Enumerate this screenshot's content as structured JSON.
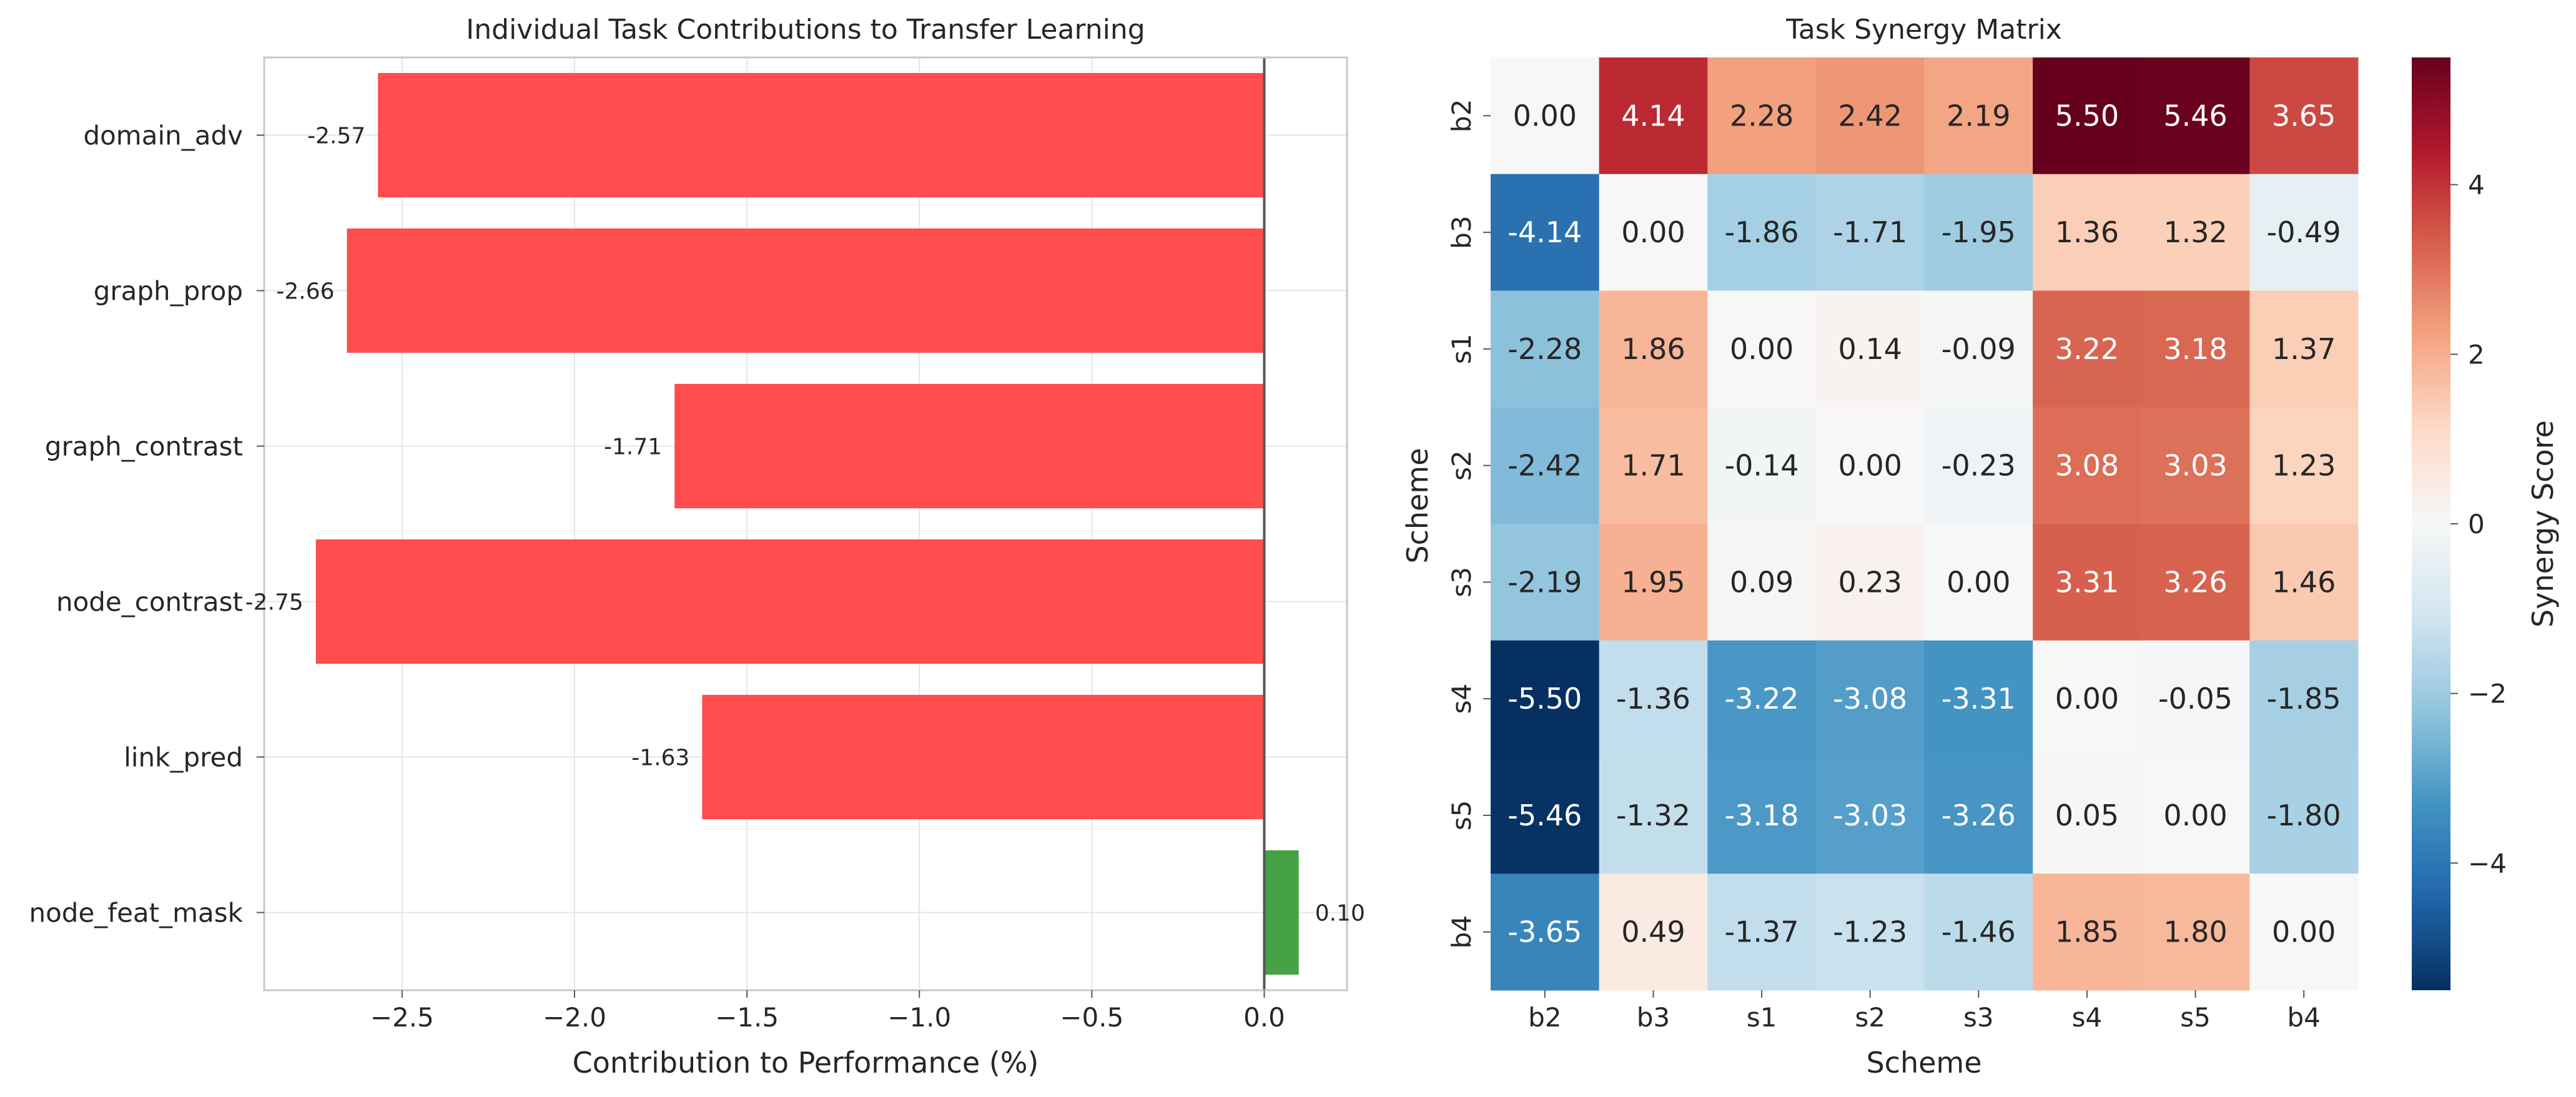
{
  "chart_data": [
    {
      "type": "bar",
      "orientation": "horizontal",
      "title": "Individual Task Contributions to Transfer Learning",
      "xlabel": "Contribution to Performance (%)",
      "ylabel": "",
      "categories": [
        "domain_adv",
        "graph_prop",
        "graph_contrast",
        "node_contrast",
        "link_pred",
        "node_feat_mask"
      ],
      "values": [
        -2.57,
        -2.66,
        -1.71,
        -2.75,
        -1.63,
        0.1
      ],
      "value_labels": [
        "-2.57",
        "-2.66",
        "-1.71",
        "-2.75",
        "-1.63",
        "0.10"
      ],
      "xlim": [
        -2.9,
        0.24
      ],
      "xticks": [
        -2.5,
        -2.0,
        -1.5,
        -1.0,
        -0.5,
        0.0
      ],
      "xtick_labels": [
        "−2.5",
        "−2.0",
        "−1.5",
        "−1.0",
        "−0.5",
        "0.0"
      ],
      "grid": true,
      "colors": {
        "negative": "#ff4d4d",
        "positive": "#45a345",
        "zero_line": "#555555",
        "grid": "#e5e5e5",
        "frame": "#c8c8c8"
      }
    },
    {
      "type": "heatmap",
      "title": "Task Synergy Matrix",
      "xlabel": "Scheme",
      "ylabel": "Scheme",
      "x_categories": [
        "b2",
        "b3",
        "s1",
        "s2",
        "s3",
        "s4",
        "s5",
        "b4"
      ],
      "y_categories": [
        "b2",
        "b3",
        "s1",
        "s2",
        "s3",
        "s4",
        "s5",
        "b4"
      ],
      "values": [
        [
          0.0,
          4.14,
          2.28,
          2.42,
          2.19,
          5.5,
          5.46,
          3.65
        ],
        [
          -4.14,
          0.0,
          -1.86,
          -1.71,
          -1.95,
          1.36,
          1.32,
          -0.49
        ],
        [
          -2.28,
          1.86,
          0.0,
          0.14,
          -0.09,
          3.22,
          3.18,
          1.37
        ],
        [
          -2.42,
          1.71,
          -0.14,
          0.0,
          -0.23,
          3.08,
          3.03,
          1.23
        ],
        [
          -2.19,
          1.95,
          0.09,
          0.23,
          0.0,
          3.31,
          3.26,
          1.46
        ],
        [
          -5.5,
          -1.36,
          -3.22,
          -3.08,
          -3.31,
          0.0,
          -0.05,
          -1.85
        ],
        [
          -5.46,
          -1.32,
          -3.18,
          -3.03,
          -3.26,
          0.05,
          0.0,
          -1.8
        ],
        [
          -3.65,
          0.49,
          -1.37,
          -1.23,
          -1.46,
          1.85,
          1.8,
          0.0
        ]
      ],
      "value_labels": [
        [
          "0.00",
          "4.14",
          "2.28",
          "2.42",
          "2.19",
          "5.50",
          "5.46",
          "3.65"
        ],
        [
          "-4.14",
          "0.00",
          "-1.86",
          "-1.71",
          "-1.95",
          "1.36",
          "1.32",
          "-0.49"
        ],
        [
          "-2.28",
          "1.86",
          "0.00",
          "0.14",
          "-0.09",
          "3.22",
          "3.18",
          "1.37"
        ],
        [
          "-2.42",
          "1.71",
          "-0.14",
          "0.00",
          "-0.23",
          "3.08",
          "3.03",
          "1.23"
        ],
        [
          "-2.19",
          "1.95",
          "0.09",
          "0.23",
          "0.00",
          "3.31",
          "3.26",
          "1.46"
        ],
        [
          "-5.50",
          "-1.36",
          "-3.22",
          "-3.08",
          "-3.31",
          "0.00",
          "-0.05",
          "-1.85"
        ],
        [
          "-5.46",
          "-1.32",
          "-3.18",
          "-3.03",
          "-3.26",
          "0.05",
          "0.00",
          "-1.80"
        ],
        [
          "-3.65",
          "0.49",
          "-1.37",
          "-1.23",
          "-1.46",
          "1.85",
          "1.80",
          "0.00"
        ]
      ],
      "colormap": "RdBu_r",
      "vmin": -5.5,
      "vmax": 5.5,
      "colorbar": {
        "label": "Synergy Score",
        "ticks": [
          -4,
          -2,
          0,
          2,
          4
        ],
        "tick_labels": [
          "−4",
          "−2",
          "0",
          "2",
          "4"
        ]
      }
    }
  ]
}
